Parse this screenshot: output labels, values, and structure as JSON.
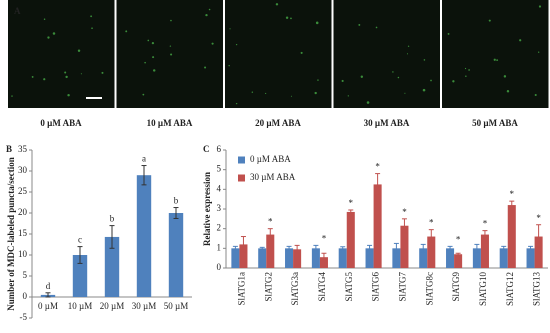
{
  "panel_a": {
    "label": "A",
    "images": [
      "0 µM ABA",
      "10 µM ABA",
      "20 µM ABA",
      "30 µM ABA",
      "50 µM ABA"
    ]
  },
  "chart_data": [
    {
      "type": "bar",
      "panel": "B",
      "y_label": "Number of MDC-labeled puncta/section",
      "categories": [
        "0 µM",
        "10 µM",
        "20 µM",
        "30 µM",
        "50 µM"
      ],
      "values": [
        0.5,
        10,
        14.3,
        29,
        20
      ],
      "errors": [
        0.5,
        2,
        2.7,
        2.3,
        1.3
      ],
      "annotations": [
        "d",
        "c",
        "b",
        "a",
        "b"
      ],
      "color": "#4f81bd",
      "ylim": [
        -5,
        35
      ],
      "yticks": [
        -5,
        0,
        5,
        10,
        15,
        20,
        25,
        30,
        35
      ]
    },
    {
      "type": "grouped_bar",
      "panel": "C",
      "y_label": "Relative expression",
      "categories": [
        "SlATG1a",
        "SlATG2",
        "SlATG3a",
        "SlATG4",
        "SlATG5",
        "SlATG6",
        "SlATG7",
        "SlATG8c",
        "SlATG9",
        "SlATG10",
        "SlATG12",
        "SlATG13"
      ],
      "series": [
        {
          "name": "0 µM ABA",
          "color": "#4f81bd",
          "values": [
            1,
            1,
            1,
            1,
            1,
            1,
            1,
            1,
            1,
            1,
            1,
            1
          ],
          "errors": [
            0.1,
            0.05,
            0.1,
            0.15,
            0.08,
            0.15,
            0.25,
            0.2,
            0.1,
            0.2,
            0.1,
            0.1
          ]
        },
        {
          "name": "30 µM ABA",
          "color": "#c0504d",
          "values": [
            1.2,
            1.7,
            0.95,
            0.55,
            2.85,
            4.25,
            2.15,
            1.6,
            0.7,
            1.7,
            3.2,
            1.6
          ],
          "errors": [
            0.4,
            0.3,
            0.2,
            0.2,
            0.1,
            0.55,
            0.35,
            0.35,
            0.05,
            0.2,
            0.2,
            0.6
          ]
        }
      ],
      "annotations": [
        null,
        "*",
        null,
        "*",
        "*",
        "*",
        "*",
        "*",
        "*",
        "*",
        "*",
        "*"
      ],
      "ylim": [
        0,
        6
      ],
      "yticks": [
        0,
        1,
        2,
        3,
        4,
        5,
        6
      ],
      "legend": "top-left"
    }
  ]
}
